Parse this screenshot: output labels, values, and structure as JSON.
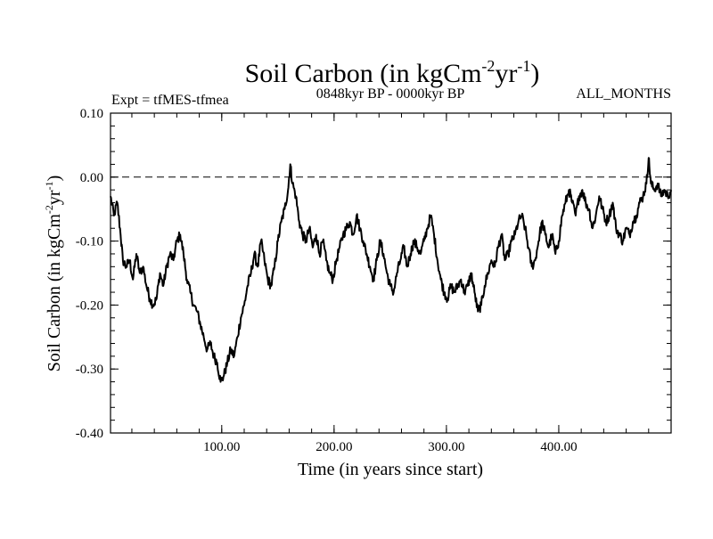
{
  "chart_data": {
    "type": "line",
    "title_main": "Soil Carbon (in kgCm",
    "title_sup1": "-2",
    "title_mid": "yr",
    "title_sup2": "-1",
    "title_end": ")",
    "subtitle_left": "Expt = tfMES-tfmea",
    "subtitle_center": "0848kyr BP - 0000kyr BP",
    "subtitle_right": "ALL_MONTHS",
    "xlabel": "Time (in years since start)",
    "ylabel_main": "Soil Carbon (in kgCm",
    "ylabel_sup1": "-2",
    "ylabel_mid": "yr",
    "ylabel_sup2": "-1",
    "ylabel_end": ")",
    "xlim": [
      1,
      500
    ],
    "ylim": [
      -0.4,
      0.1
    ],
    "x_ticks": [
      {
        "value": 100,
        "label": "100.00"
      },
      {
        "value": 200,
        "label": "200.00"
      },
      {
        "value": 300,
        "label": "300.00"
      },
      {
        "value": 400,
        "label": "400.00"
      }
    ],
    "y_ticks": [
      {
        "value": 0.1,
        "label": "0.10"
      },
      {
        "value": 0.0,
        "label": "0.00"
      },
      {
        "value": -0.1,
        "label": "-0.10"
      },
      {
        "value": -0.2,
        "label": "-0.20"
      },
      {
        "value": -0.3,
        "label": "-0.30"
      },
      {
        "value": -0.4,
        "label": "-0.40"
      }
    ],
    "reference_line": {
      "y": 0.0,
      "style": "dashed"
    },
    "series": [
      {
        "name": "Soil Carbon",
        "color": "#000000",
        "points": [
          [
            1,
            -0.03
          ],
          [
            4,
            -0.06
          ],
          [
            7,
            -0.04
          ],
          [
            10,
            -0.09
          ],
          [
            12,
            -0.13
          ],
          [
            15,
            -0.14
          ],
          [
            18,
            -0.13
          ],
          [
            21,
            -0.16
          ],
          [
            24,
            -0.12
          ],
          [
            27,
            -0.15
          ],
          [
            30,
            -0.14
          ],
          [
            33,
            -0.17
          ],
          [
            36,
            -0.19
          ],
          [
            39,
            -0.2
          ],
          [
            42,
            -0.19
          ],
          [
            45,
            -0.15
          ],
          [
            48,
            -0.17
          ],
          [
            51,
            -0.14
          ],
          [
            54,
            -0.12
          ],
          [
            57,
            -0.13
          ],
          [
            60,
            -0.1
          ],
          [
            63,
            -0.09
          ],
          [
            66,
            -0.12
          ],
          [
            69,
            -0.16
          ],
          [
            72,
            -0.18
          ],
          [
            75,
            -0.2
          ],
          [
            78,
            -0.21
          ],
          [
            81,
            -0.23
          ],
          [
            84,
            -0.25
          ],
          [
            87,
            -0.27
          ],
          [
            90,
            -0.26
          ],
          [
            93,
            -0.28
          ],
          [
            96,
            -0.29
          ],
          [
            99,
            -0.32
          ],
          [
            102,
            -0.31
          ],
          [
            105,
            -0.29
          ],
          [
            108,
            -0.27
          ],
          [
            111,
            -0.28
          ],
          [
            114,
            -0.25
          ],
          [
            117,
            -0.22
          ],
          [
            120,
            -0.2
          ],
          [
            123,
            -0.17
          ],
          [
            126,
            -0.15
          ],
          [
            129,
            -0.12
          ],
          [
            132,
            -0.14
          ],
          [
            135,
            -0.1
          ],
          [
            138,
            -0.13
          ],
          [
            141,
            -0.16
          ],
          [
            144,
            -0.17
          ],
          [
            147,
            -0.14
          ],
          [
            150,
            -0.1
          ],
          [
            153,
            -0.07
          ],
          [
            156,
            -0.05
          ],
          [
            159,
            -0.02
          ],
          [
            161,
            0.02
          ],
          [
            163,
            -0.01
          ],
          [
            166,
            -0.03
          ],
          [
            169,
            -0.07
          ],
          [
            172,
            -0.09
          ],
          [
            175,
            -0.1
          ],
          [
            178,
            -0.08
          ],
          [
            181,
            -0.11
          ],
          [
            184,
            -0.09
          ],
          [
            187,
            -0.12
          ],
          [
            190,
            -0.1
          ],
          [
            193,
            -0.13
          ],
          [
            196,
            -0.15
          ],
          [
            199,
            -0.16
          ],
          [
            202,
            -0.13
          ],
          [
            205,
            -0.11
          ],
          [
            208,
            -0.09
          ],
          [
            211,
            -0.08
          ],
          [
            214,
            -0.07
          ],
          [
            217,
            -0.09
          ],
          [
            220,
            -0.06
          ],
          [
            223,
            -0.08
          ],
          [
            226,
            -0.1
          ],
          [
            229,
            -0.12
          ],
          [
            232,
            -0.14
          ],
          [
            235,
            -0.16
          ],
          [
            238,
            -0.13
          ],
          [
            241,
            -0.1
          ],
          [
            244,
            -0.12
          ],
          [
            247,
            -0.15
          ],
          [
            250,
            -0.17
          ],
          [
            253,
            -0.18
          ],
          [
            256,
            -0.15
          ],
          [
            259,
            -0.13
          ],
          [
            262,
            -0.11
          ],
          [
            265,
            -0.14
          ],
          [
            268,
            -0.12
          ],
          [
            271,
            -0.1
          ],
          [
            274,
            -0.11
          ],
          [
            277,
            -0.12
          ],
          [
            280,
            -0.1
          ],
          [
            283,
            -0.08
          ],
          [
            286,
            -0.06
          ],
          [
            289,
            -0.09
          ],
          [
            292,
            -0.13
          ],
          [
            295,
            -0.16
          ],
          [
            298,
            -0.18
          ],
          [
            301,
            -0.19
          ],
          [
            304,
            -0.17
          ],
          [
            307,
            -0.18
          ],
          [
            310,
            -0.17
          ],
          [
            313,
            -0.16
          ],
          [
            316,
            -0.18
          ],
          [
            319,
            -0.17
          ],
          [
            322,
            -0.15
          ],
          [
            325,
            -0.18
          ],
          [
            328,
            -0.21
          ],
          [
            331,
            -0.2
          ],
          [
            334,
            -0.17
          ],
          [
            337,
            -0.15
          ],
          [
            340,
            -0.13
          ],
          [
            343,
            -0.14
          ],
          [
            346,
            -0.11
          ],
          [
            349,
            -0.09
          ],
          [
            352,
            -0.13
          ],
          [
            355,
            -0.12
          ],
          [
            358,
            -0.1
          ],
          [
            361,
            -0.09
          ],
          [
            364,
            -0.07
          ],
          [
            367,
            -0.06
          ],
          [
            370,
            -0.08
          ],
          [
            373,
            -0.11
          ],
          [
            376,
            -0.14
          ],
          [
            379,
            -0.13
          ],
          [
            382,
            -0.1
          ],
          [
            385,
            -0.07
          ],
          [
            388,
            -0.09
          ],
          [
            391,
            -0.11
          ],
          [
            394,
            -0.09
          ],
          [
            397,
            -0.12
          ],
          [
            400,
            -0.1
          ],
          [
            403,
            -0.06
          ],
          [
            406,
            -0.04
          ],
          [
            409,
            -0.02
          ],
          [
            412,
            -0.04
          ],
          [
            415,
            -0.06
          ],
          [
            418,
            -0.03
          ],
          [
            421,
            -0.02
          ],
          [
            424,
            -0.04
          ],
          [
            427,
            -0.05
          ],
          [
            430,
            -0.08
          ],
          [
            433,
            -0.06
          ],
          [
            436,
            -0.03
          ],
          [
            439,
            -0.05
          ],
          [
            442,
            -0.07
          ],
          [
            445,
            -0.06
          ],
          [
            448,
            -0.04
          ],
          [
            451,
            -0.08
          ],
          [
            454,
            -0.09
          ],
          [
            457,
            -0.1
          ],
          [
            460,
            -0.08
          ],
          [
            463,
            -0.09
          ],
          [
            466,
            -0.07
          ],
          [
            469,
            -0.06
          ],
          [
            472,
            -0.04
          ],
          [
            475,
            -0.03
          ],
          [
            478,
            -0.01
          ],
          [
            480,
            0.03
          ],
          [
            482,
            -0.01
          ],
          [
            485,
            -0.02
          ],
          [
            488,
            -0.01
          ],
          [
            491,
            -0.03
          ],
          [
            494,
            -0.02
          ],
          [
            497,
            -0.03
          ],
          [
            500,
            -0.02
          ]
        ]
      }
    ]
  }
}
